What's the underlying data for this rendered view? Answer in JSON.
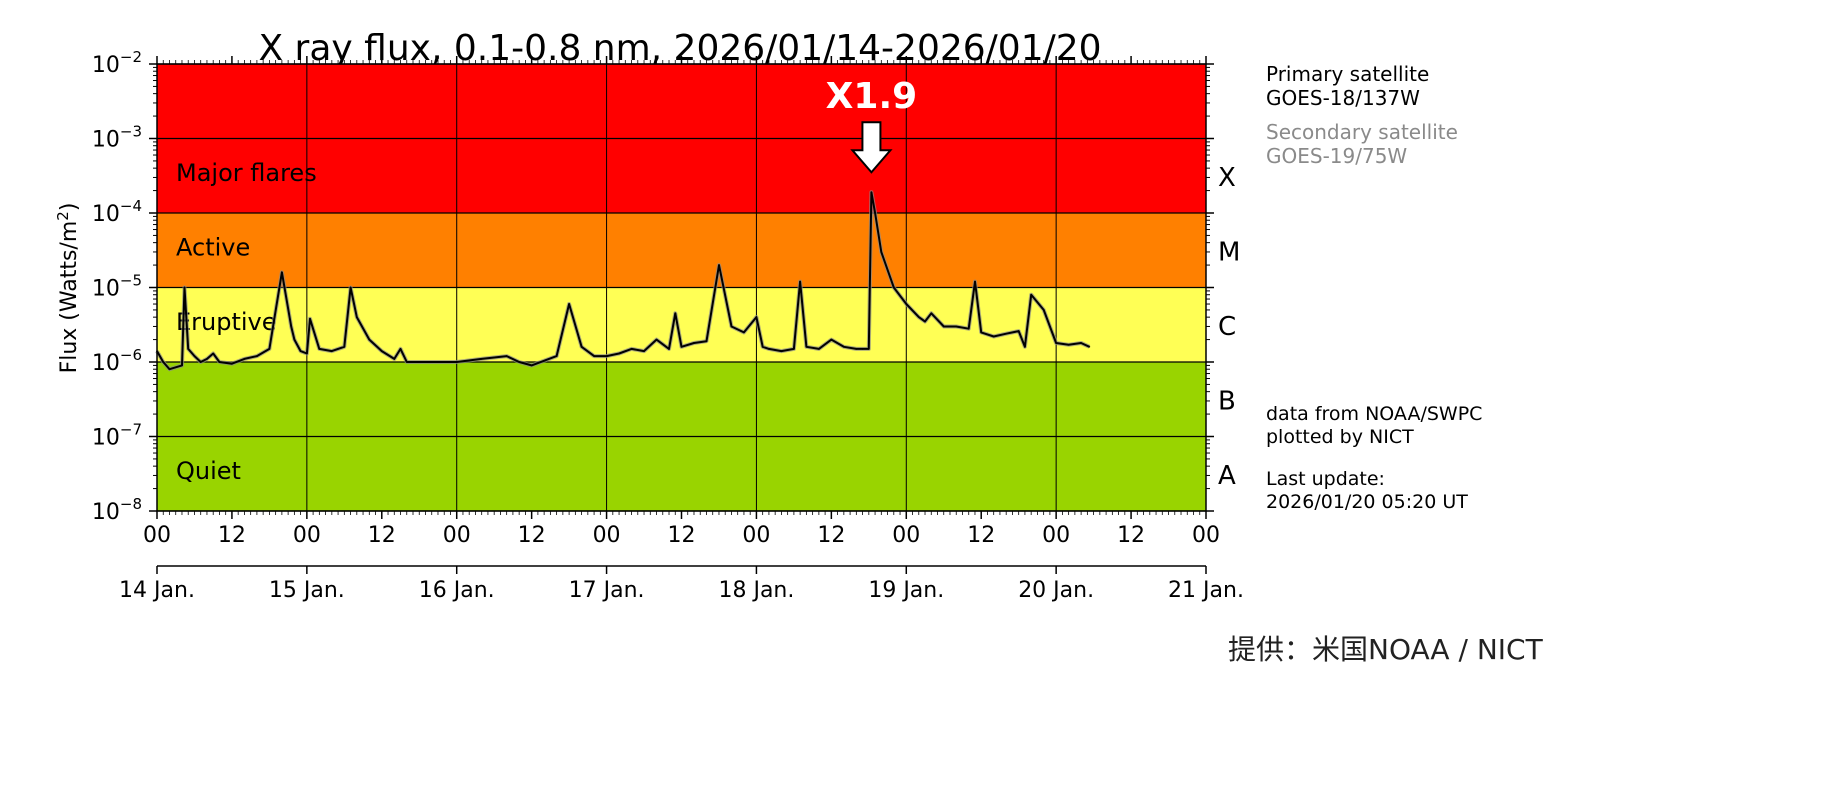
{
  "chart_data": {
    "type": "line",
    "title": "X ray flux, 0.1-0.8 nm, 2026/01/14-2026/01/20",
    "ylabel": "Flux (Watts/m²)",
    "ylabel_main": "Flux (Watts/m",
    "ylabel_sup": "2",
    "ylabel_end": ")",
    "yscale": "log",
    "ylim": [
      1e-08,
      0.01
    ],
    "y_ticks": [
      {
        "value": 1e-08,
        "base": "10",
        "exp": "−8"
      },
      {
        "value": 1e-07,
        "base": "10",
        "exp": "−7"
      },
      {
        "value": 1e-06,
        "base": "10",
        "exp": "−6"
      },
      {
        "value": 1e-05,
        "base": "10",
        "exp": "−5"
      },
      {
        "value": 0.0001,
        "base": "10",
        "exp": "−4"
      },
      {
        "value": 0.001,
        "base": "10",
        "exp": "−3"
      },
      {
        "value": 0.01,
        "base": "10",
        "exp": "−2"
      }
    ],
    "xlim": [
      "2026-01-14 00:00",
      "2026-01-21 00:00"
    ],
    "x_hour_ticks": [
      "00",
      "12",
      "00",
      "12",
      "00",
      "12",
      "00",
      "12",
      "00",
      "12",
      "00",
      "12",
      "00",
      "12",
      "00"
    ],
    "x_day_ticks": [
      "14 Jan.",
      "15 Jan.",
      "16 Jan.",
      "17 Jan.",
      "18 Jan.",
      "19 Jan.",
      "20 Jan.",
      "21 Jan."
    ],
    "grid": true,
    "bands": [
      {
        "label": "Quiet",
        "class": "",
        "from": 1e-08,
        "to": 1e-06,
        "color": "#99d400"
      },
      {
        "label": "Eruptive",
        "class": "",
        "from": 1e-06,
        "to": 1e-05,
        "color": "#ffff55"
      },
      {
        "label": "Active",
        "class": "",
        "from": 1e-05,
        "to": 0.0001,
        "color": "#ff8000"
      },
      {
        "label": "Major flares",
        "class": "",
        "from": 0.0001,
        "to": 0.01,
        "color": "#ff0000"
      }
    ],
    "class_labels": [
      {
        "label": "A",
        "value": 3.16e-08
      },
      {
        "label": "B",
        "value": 3.16e-07
      },
      {
        "label": "C",
        "value": 3.16e-06
      },
      {
        "label": "M",
        "value": 3.16e-05
      },
      {
        "label": "X",
        "value": 0.000316
      }
    ],
    "annotation": {
      "text": "X1.9",
      "x": "2026-01-18 18:25",
      "y": 0.00019
    },
    "series": [
      {
        "color": "#000000",
        "x": [
          "2026-01-14 00:00",
          "2026-01-14 01:00",
          "2026-01-14 02:00",
          "2026-01-14 03:00",
          "2026-01-14 04:00",
          "2026-01-14 04:24",
          "2026-01-14 05:00",
          "2026-01-14 06:00",
          "2026-01-14 07:00",
          "2026-01-14 08:00",
          "2026-01-14 09:00",
          "2026-01-14 10:00",
          "2026-01-14 12:00",
          "2026-01-14 14:00",
          "2026-01-14 16:00",
          "2026-01-14 18:00",
          "2026-01-14 20:00",
          "2026-01-14 21:30",
          "2026-01-14 22:00",
          "2026-01-14 23:00",
          "2026-01-15 00:00",
          "2026-01-15 00:30",
          "2026-01-15 02:00",
          "2026-01-15 04:00",
          "2026-01-15 06:00",
          "2026-01-15 07:00",
          "2026-01-15 08:00",
          "2026-01-15 10:00",
          "2026-01-15 12:00",
          "2026-01-15 14:00",
          "2026-01-15 15:00",
          "2026-01-15 16:00",
          "2026-01-15 18:00",
          "2026-01-15 20:00",
          "2026-01-16 00:00",
          "2026-01-16 04:00",
          "2026-01-16 08:00",
          "2026-01-16 10:00",
          "2026-01-16 12:00",
          "2026-01-16 16:00",
          "2026-01-16 18:00",
          "2026-01-16 20:00",
          "2026-01-16 22:00",
          "2026-01-17 00:00",
          "2026-01-17 02:00",
          "2026-01-17 04:00",
          "2026-01-17 06:00",
          "2026-01-17 08:00",
          "2026-01-17 10:00",
          "2026-01-17 11:00",
          "2026-01-17 12:00",
          "2026-01-17 14:00",
          "2026-01-17 16:00",
          "2026-01-17 18:00",
          "2026-01-17 20:00",
          "2026-01-17 22:00",
          "2026-01-18 00:00",
          "2026-01-18 01:00",
          "2026-01-18 02:00",
          "2026-01-18 04:00",
          "2026-01-18 06:00",
          "2026-01-18 07:00",
          "2026-01-18 08:00",
          "2026-01-18 10:00",
          "2026-01-18 12:00",
          "2026-01-18 14:00",
          "2026-01-18 16:00",
          "2026-01-18 17:00",
          "2026-01-18 18:00",
          "2026-01-18 18:25",
          "2026-01-18 19:00",
          "2026-01-18 20:00",
          "2026-01-18 22:00",
          "2026-01-19 00:00",
          "2026-01-19 02:00",
          "2026-01-19 03:00",
          "2026-01-19 04:00",
          "2026-01-19 06:00",
          "2026-01-19 08:00",
          "2026-01-19 10:00",
          "2026-01-19 11:00",
          "2026-01-19 12:00",
          "2026-01-19 14:00",
          "2026-01-19 16:00",
          "2026-01-19 18:00",
          "2026-01-19 19:00",
          "2026-01-19 20:00",
          "2026-01-19 22:00",
          "2026-01-20 00:00",
          "2026-01-20 02:00",
          "2026-01-20 04:00",
          "2026-01-20 05:20"
        ],
        "values": [
          1.4e-06,
          1e-06,
          8e-07,
          8.5e-07,
          9e-07,
          1e-05,
          1.5e-06,
          1.2e-06,
          1e-06,
          1.1e-06,
          1.3e-06,
          1e-06,
          9.5e-07,
          1.1e-06,
          1.2e-06,
          1.5e-06,
          1.6e-05,
          3e-06,
          2e-06,
          1.4e-06,
          1.3e-06,
          3.8e-06,
          1.5e-06,
          1.4e-06,
          1.6e-06,
          1e-05,
          4e-06,
          2e-06,
          1.4e-06,
          1.1e-06,
          1.5e-06,
          1e-06,
          1e-06,
          1e-06,
          1e-06,
          1.1e-06,
          1.2e-06,
          1e-06,
          9e-07,
          1.2e-06,
          6e-06,
          1.6e-06,
          1.2e-06,
          1.2e-06,
          1.3e-06,
          1.5e-06,
          1.4e-06,
          2e-06,
          1.5e-06,
          4.5e-06,
          1.6e-06,
          1.8e-06,
          1.9e-06,
          2e-05,
          3e-06,
          2.5e-06,
          4e-06,
          1.6e-06,
          1.5e-06,
          1.4e-06,
          1.5e-06,
          1.2e-05,
          1.6e-06,
          1.5e-06,
          2e-06,
          1.6e-06,
          1.5e-06,
          1.5e-06,
          1.5e-06,
          0.00019,
          0.0001,
          3e-05,
          1e-05,
          6e-06,
          4e-06,
          3.5e-06,
          4.5e-06,
          3e-06,
          3e-06,
          2.8e-06,
          1.2e-05,
          2.5e-06,
          2.2e-06,
          2.4e-06,
          2.6e-06,
          1.6e-06,
          8e-06,
          5e-06,
          1.8e-06,
          1.7e-06,
          1.8e-06,
          1.6e-06
        ]
      }
    ]
  },
  "side": {
    "primary_label": "Primary satellite",
    "primary_name": "GOES-18/137W",
    "secondary_label": "Secondary satellite",
    "secondary_name": "GOES-19/75W",
    "source_line1": "data from NOAA/SWPC",
    "source_line2": "plotted by NICT",
    "update_label": "Last update:",
    "update_value": "2026/01/20 05:20 UT"
  },
  "credit": "提供：米国NOAA / NICT",
  "colors": {
    "primary_text": "#000000",
    "secondary_text": "#8a8a8a",
    "flux_line": "#000000",
    "flux_shadow": "#8a8a8a",
    "arrow_fill": "#ffffff"
  },
  "icons": {
    "annotation_arrow": "down-arrow-icon"
  }
}
